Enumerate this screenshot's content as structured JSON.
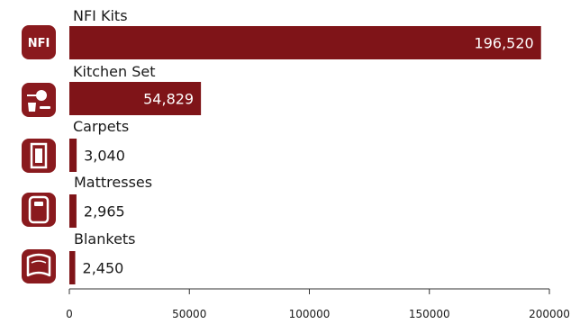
{
  "colors": {
    "bar": "#7f1418",
    "icon_bg": "#8a1a1e",
    "axis": "#333333",
    "text": "#1a1a1a"
  },
  "icons": {
    "nfi": "NFI",
    "names": [
      "nfi-badge-icon",
      "kitchen-set-icon",
      "carpet-icon",
      "mattress-icon",
      "blanket-icon"
    ]
  },
  "chart_data": {
    "type": "bar",
    "orientation": "horizontal",
    "categories": [
      "NFI Kits",
      "Kitchen Set",
      "Carpets",
      "Mattresses",
      "Blankets"
    ],
    "values": [
      196520,
      54829,
      3040,
      2965,
      2450
    ],
    "value_labels": [
      "196,520",
      "54,829",
      "3,040",
      "2,965",
      "2,450"
    ],
    "xlim": [
      0,
      200000
    ],
    "xticks": [
      0,
      50000,
      100000,
      150000,
      200000
    ],
    "xtick_labels": [
      "0",
      "50000",
      "100000",
      "150000",
      "200000"
    ],
    "title": "",
    "xlabel": "",
    "ylabel": "",
    "grid": false,
    "legend": "none"
  }
}
